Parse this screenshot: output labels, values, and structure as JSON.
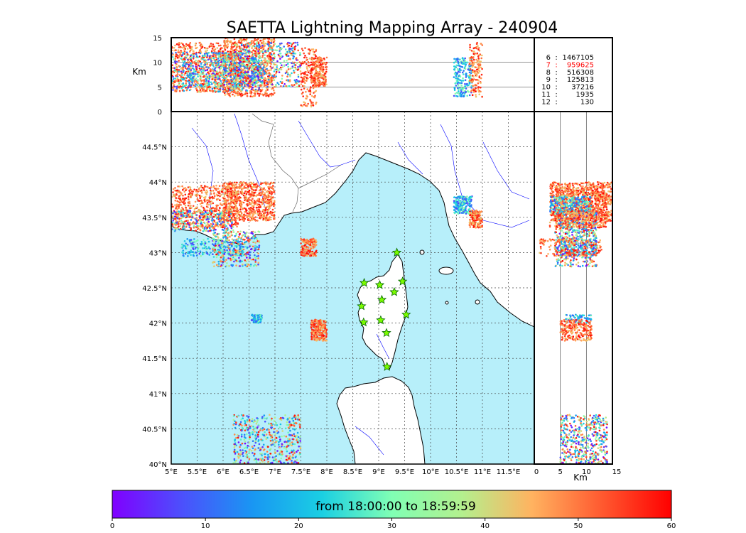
{
  "title": "SAETTA Lightning Mapping Array - 240904",
  "colorbar": {
    "label": "from 18:00:00 to 18:59:59",
    "ticks": [
      "0",
      "10",
      "20",
      "30",
      "40",
      "50",
      "60"
    ],
    "range": [
      0,
      60
    ],
    "colormap": "rainbow"
  },
  "top_panel": {
    "ylabel": "Km",
    "yticks": [
      "0",
      "5",
      "10",
      "15"
    ],
    "yrange": [
      0,
      15
    ]
  },
  "right_panel": {
    "xlabel": "Km",
    "xticks": [
      "0",
      "5",
      "10",
      "15"
    ],
    "xrange": [
      0,
      15
    ]
  },
  "map": {
    "lon_range": [
      5.0,
      12.0
    ],
    "lat_range": [
      40.0,
      45.0
    ],
    "lon_ticks": [
      "5°E",
      "5.5°E",
      "6°E",
      "6.5°E",
      "7°E",
      "7.5°E",
      "8°E",
      "8.5°E",
      "9°E",
      "9.5°E",
      "10°E",
      "10.5°E",
      "11°E",
      "11.5°E"
    ],
    "lat_ticks": [
      "40°N",
      "40.5°N",
      "41°N",
      "41.5°N",
      "42°N",
      "42.5°N",
      "43°N",
      "43.5°N",
      "44°N",
      "44.5°N"
    ],
    "sea_color": "#b7effa",
    "land_color": "#ffffff",
    "grid": "dotted"
  },
  "counts": [
    {
      "stations": "6",
      "value": "1467105",
      "color": "#000000"
    },
    {
      "stations": "7",
      "value": "959625",
      "color": "#ff0000"
    },
    {
      "stations": "8",
      "value": "516308",
      "color": "#000000"
    },
    {
      "stations": "9",
      "value": "125813",
      "color": "#000000"
    },
    {
      "stations": "10",
      "value": "37216",
      "color": "#000000"
    },
    {
      "stations": "11",
      "value": "1935",
      "color": "#000000"
    },
    {
      "stations": "12",
      "value": "130",
      "color": "#000000"
    }
  ],
  "stations": [
    {
      "lon": 9.35,
      "lat": 43.0
    },
    {
      "lon": 8.72,
      "lat": 42.57
    },
    {
      "lon": 9.02,
      "lat": 42.54
    },
    {
      "lon": 9.46,
      "lat": 42.59
    },
    {
      "lon": 9.3,
      "lat": 42.44
    },
    {
      "lon": 9.06,
      "lat": 42.33
    },
    {
      "lon": 8.67,
      "lat": 42.24
    },
    {
      "lon": 9.53,
      "lat": 42.12
    },
    {
      "lon": 8.71,
      "lat": 42.01
    },
    {
      "lon": 9.04,
      "lat": 42.04
    },
    {
      "lon": 9.15,
      "lat": 41.86
    },
    {
      "lon": 9.16,
      "lat": 41.38
    }
  ],
  "lightning_clusters": [
    {
      "lon": [
        5.0,
        6.3
      ],
      "lat": [
        43.35,
        43.95
      ],
      "alt": [
        4,
        14
      ],
      "time": "late",
      "n": 600
    },
    {
      "lon": [
        5.0,
        6.2
      ],
      "lat": [
        43.3,
        43.6
      ],
      "alt": [
        4,
        12
      ],
      "time": "mixed",
      "n": 300
    },
    {
      "lon": [
        5.2,
        6.4
      ],
      "lat": [
        42.95,
        43.2
      ],
      "alt": [
        5,
        12
      ],
      "time": "early",
      "n": 200
    },
    {
      "lon": [
        6.0,
        7.0
      ],
      "lat": [
        43.45,
        44.0
      ],
      "alt": [
        3,
        15
      ],
      "time": "late",
      "n": 700
    },
    {
      "lon": [
        5.8,
        6.7
      ],
      "lat": [
        42.8,
        43.3
      ],
      "alt": [
        4,
        12
      ],
      "time": "mixed",
      "n": 350
    },
    {
      "lon": [
        7.5,
        7.8
      ],
      "lat": [
        42.95,
        43.2
      ],
      "alt": [
        1,
        13
      ],
      "time": "late",
      "n": 150
    },
    {
      "lon": [
        6.55,
        6.75
      ],
      "lat": [
        42.0,
        42.12
      ],
      "alt": [
        6,
        11
      ],
      "time": "early",
      "n": 80
    },
    {
      "lon": [
        7.7,
        8.0
      ],
      "lat": [
        41.75,
        42.05
      ],
      "alt": [
        5,
        11
      ],
      "time": "late",
      "n": 250
    },
    {
      "lon": [
        10.45,
        10.8
      ],
      "lat": [
        43.55,
        43.8
      ],
      "alt": [
        3,
        11
      ],
      "time": "early",
      "n": 200
    },
    {
      "lon": [
        10.75,
        11.0
      ],
      "lat": [
        43.35,
        43.6
      ],
      "alt": [
        3,
        14
      ],
      "time": "late",
      "n": 150
    },
    {
      "lon": [
        6.2,
        7.5
      ],
      "lat": [
        40.0,
        40.7
      ],
      "alt": [
        5,
        14
      ],
      "time": "mixed",
      "n": 500
    }
  ]
}
